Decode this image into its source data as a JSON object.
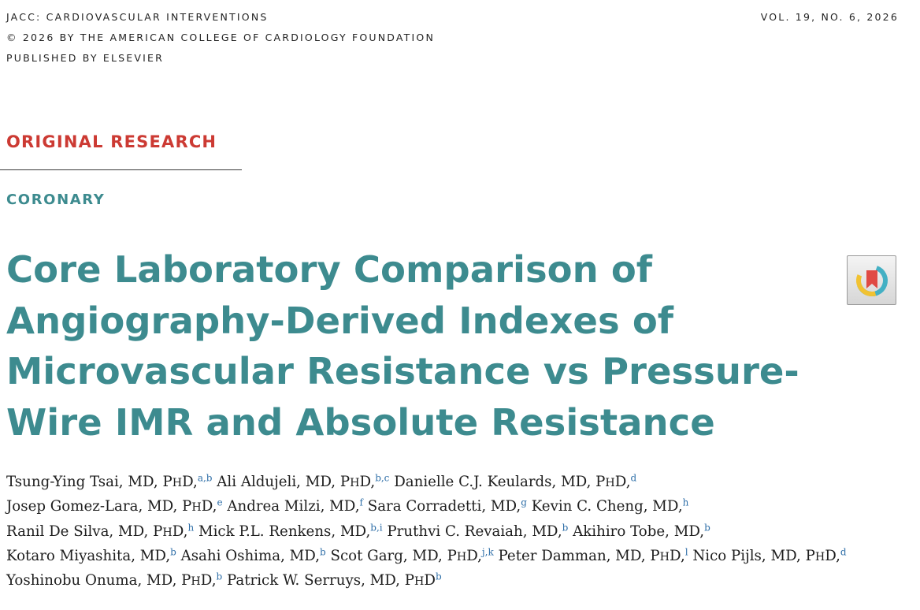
{
  "header": {
    "journal": "JACC: CARDIOVASCULAR INTERVENTIONS",
    "copyright": "© 2026 BY THE AMERICAN COLLEGE OF CARDIOLOGY FOUNDATION",
    "publisher": "PUBLISHED BY ELSEVIER",
    "volume": "VOL. 19, NO. 6, 2026"
  },
  "article": {
    "type": "ORIGINAL RESEARCH",
    "section": "CORONARY",
    "title_lines": [
      "Core Laboratory Comparison of",
      "Angiography-Derived Indexes of",
      "Microvascular Resistance vs Pressure-",
      "Wire IMR and Absolute Resistance"
    ]
  },
  "badge": {
    "icon": "crossmark-bookmark-icon",
    "colors": {
      "ring_teal": "#43b0c4",
      "ring_yellow": "#f1c232",
      "bookmark_red": "#e04a44"
    }
  },
  "colors": {
    "accent_red": "#cc3a33",
    "accent_teal": "#3d8b8f",
    "affiliation_blue": "#2f6fa8"
  },
  "authors": [
    [
      {
        "name": "Tsung-Ying Tsai",
        "degrees": [
          {
            "t": ", MD, P"
          },
          {
            "t": "H",
            "sc": true
          },
          {
            "t": "D,"
          }
        ],
        "aff": "a,b"
      },
      {
        "name": "Ali Aldujeli",
        "degrees": [
          {
            "t": ", MD, P"
          },
          {
            "t": "H",
            "sc": true
          },
          {
            "t": "D,"
          }
        ],
        "aff": "b,c"
      },
      {
        "name": "Danielle C.J. Keulards",
        "degrees": [
          {
            "t": ", MD, P"
          },
          {
            "t": "H",
            "sc": true
          },
          {
            "t": "D,"
          }
        ],
        "aff": "d"
      }
    ],
    [
      {
        "name": "Josep Gomez-Lara",
        "degrees": [
          {
            "t": ", MD, P"
          },
          {
            "t": "H",
            "sc": true
          },
          {
            "t": "D,"
          }
        ],
        "aff": "e"
      },
      {
        "name": "Andrea Milzi",
        "degrees": [
          {
            "t": ", MD,"
          }
        ],
        "aff": "f"
      },
      {
        "name": "Sara Corradetti",
        "degrees": [
          {
            "t": ", MD,"
          }
        ],
        "aff": "g"
      },
      {
        "name": "Kevin C. Cheng",
        "degrees": [
          {
            "t": ", MD,"
          }
        ],
        "aff": "h"
      }
    ],
    [
      {
        "name": "Ranil De Silva",
        "degrees": [
          {
            "t": ", MD, P"
          },
          {
            "t": "H",
            "sc": true
          },
          {
            "t": "D,"
          }
        ],
        "aff": "h"
      },
      {
        "name": "Mick P.L. Renkens",
        "degrees": [
          {
            "t": ", MD,"
          }
        ],
        "aff": "b,i"
      },
      {
        "name": "Pruthvi C. Revaiah",
        "degrees": [
          {
            "t": ", MD,"
          }
        ],
        "aff": "b"
      },
      {
        "name": "Akihiro Tobe",
        "degrees": [
          {
            "t": ", MD,"
          }
        ],
        "aff": "b"
      }
    ],
    [
      {
        "name": "Kotaro Miyashita",
        "degrees": [
          {
            "t": ", MD,"
          }
        ],
        "aff": "b"
      },
      {
        "name": "Asahi Oshima",
        "degrees": [
          {
            "t": ", MD,"
          }
        ],
        "aff": "b"
      },
      {
        "name": "Scot Garg",
        "degrees": [
          {
            "t": ", MD, P"
          },
          {
            "t": "H",
            "sc": true
          },
          {
            "t": "D,"
          }
        ],
        "aff": "j,k"
      },
      {
        "name": "Peter Damman",
        "degrees": [
          {
            "t": ", MD, P"
          },
          {
            "t": "H",
            "sc": true
          },
          {
            "t": "D,"
          }
        ],
        "aff": "l"
      },
      {
        "name": "Nico Pijls",
        "degrees": [
          {
            "t": ", MD, P"
          },
          {
            "t": "H",
            "sc": true
          },
          {
            "t": "D,"
          }
        ],
        "aff": "d"
      }
    ],
    [
      {
        "name": "Yoshinobu Onuma",
        "degrees": [
          {
            "t": ", MD, P"
          },
          {
            "t": "H",
            "sc": true
          },
          {
            "t": "D,"
          }
        ],
        "aff": "b"
      },
      {
        "name": "Patrick W. Serruys",
        "degrees": [
          {
            "t": ", MD, P"
          },
          {
            "t": "H",
            "sc": true
          },
          {
            "t": "D"
          }
        ],
        "aff": "b"
      }
    ]
  ]
}
